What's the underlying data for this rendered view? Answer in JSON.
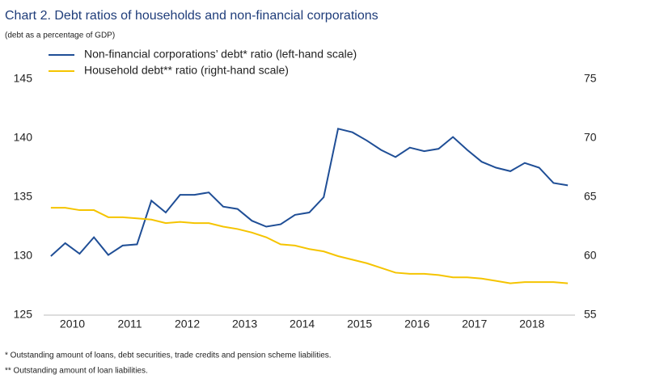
{
  "chart_data": {
    "type": "line",
    "title": "Chart 2. Debt ratios of households and non-financial corporations",
    "subtitle": "(debt as a percentage of GDP)",
    "x": [
      2010.125,
      2010.375,
      2010.625,
      2010.875,
      2011.125,
      2011.375,
      2011.625,
      2011.875,
      2012.125,
      2012.375,
      2012.625,
      2012.875,
      2013.125,
      2013.375,
      2013.625,
      2013.875,
      2014.125,
      2014.375,
      2014.625,
      2014.875,
      2015.125,
      2015.375,
      2015.625,
      2015.875,
      2016.125,
      2016.375,
      2016.625,
      2016.875,
      2017.125,
      2017.375,
      2017.625,
      2017.875,
      2018.125,
      2018.375,
      2018.625,
      2018.875,
      2019.125
    ],
    "xlim": [
      2010,
      2019.25
    ],
    "xticks": [
      {
        "value": 2010.5,
        "label": "2010"
      },
      {
        "value": 2011.5,
        "label": "2011"
      },
      {
        "value": 2012.5,
        "label": "2012"
      },
      {
        "value": 2013.5,
        "label": "2013"
      },
      {
        "value": 2014.5,
        "label": "2014"
      },
      {
        "value": 2015.5,
        "label": "2015"
      },
      {
        "value": 2016.5,
        "label": "2016"
      },
      {
        "value": 2017.5,
        "label": "2017"
      },
      {
        "value": 2018.5,
        "label": "2018"
      }
    ],
    "ylim": [
      125,
      145
    ],
    "yticks": [
      125,
      130,
      135,
      140,
      145
    ],
    "y2lim": [
      55,
      75
    ],
    "y2ticks": [
      55,
      60,
      65,
      70,
      75
    ],
    "grid": false,
    "legend": "top-left",
    "series": [
      {
        "name": "Non-financial corporations’ debt* ratio (left-hand scale)",
        "color": "#1f4e96",
        "values": [
          130.0,
          131.1,
          130.2,
          131.6,
          130.1,
          130.9,
          131.0,
          134.7,
          133.7,
          135.2,
          135.2,
          135.4,
          134.2,
          134.0,
          133.0,
          132.5,
          132.7,
          133.5,
          133.7,
          135.0,
          140.8,
          140.5,
          139.8,
          139.0,
          138.4,
          139.2,
          138.9,
          139.1,
          140.1,
          139.0,
          138.0,
          137.5,
          137.2,
          137.9,
          137.5,
          136.2,
          136.0
        ]
      },
      {
        "name": "Household debt** ratio (right-hand scale)",
        "color": "#f5c400",
        "axis": "y2",
        "values": [
          64.1,
          64.1,
          63.9,
          63.9,
          63.3,
          63.3,
          63.2,
          63.1,
          62.8,
          62.9,
          62.8,
          62.8,
          62.5,
          62.3,
          62.0,
          61.6,
          61.0,
          60.9,
          60.6,
          60.4,
          60.0,
          59.7,
          59.4,
          59.0,
          58.6,
          58.5,
          58.5,
          58.4,
          58.2,
          58.2,
          58.1,
          57.9,
          57.7,
          57.8,
          57.8,
          57.8,
          57.7
        ]
      }
    ],
    "notes": [
      "* Outstanding amount of loans, debt securities, trade credits and pension scheme liabilities.",
      "** Outstanding amount of loan liabilities."
    ]
  }
}
